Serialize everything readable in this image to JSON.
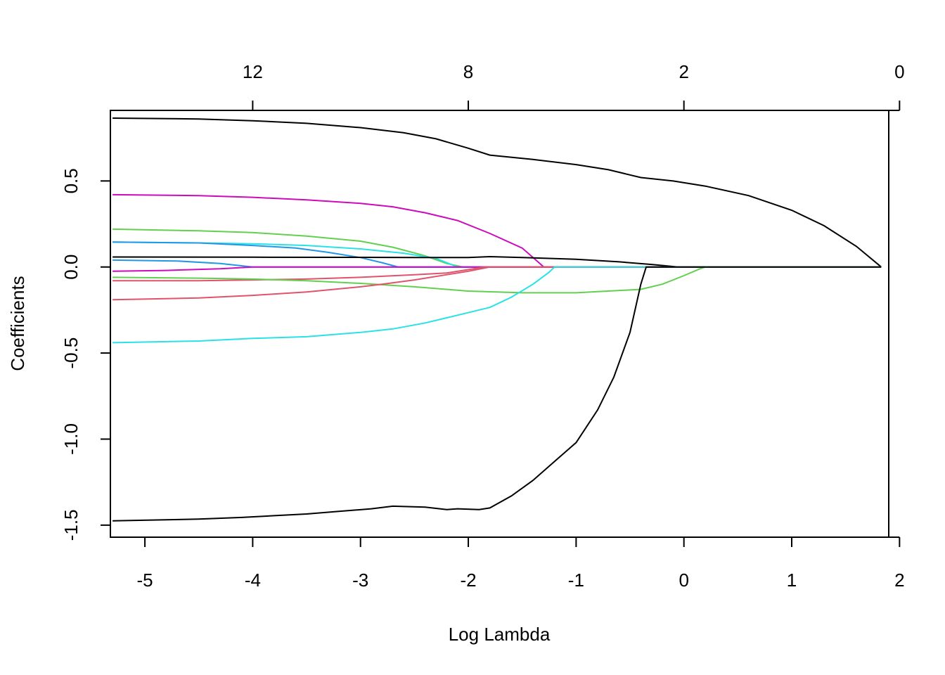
{
  "chart_data": {
    "type": "line",
    "xlabel": "Log Lambda",
    "ylabel": "Coefficients",
    "xlim": [
      -5.32,
      1.9
    ],
    "ylim": [
      -1.57,
      0.91
    ],
    "x_ticks": [
      -5,
      -4,
      -3,
      -2,
      -1,
      0,
      1,
      2
    ],
    "x_tick_labels": [
      "-5",
      "-4",
      "-3",
      "-2",
      "-1",
      "0",
      "1",
      "2"
    ],
    "y_ticks": [
      -1.5,
      -1.0,
      -0.5,
      0.0,
      0.5
    ],
    "y_tick_labels": [
      "-1.5",
      "-1.0",
      "-0.5",
      "0.0",
      "0.5"
    ],
    "top_axis": {
      "ticks": [
        -4,
        -2,
        0,
        2
      ],
      "labels": [
        "12",
        "8",
        "2",
        "0"
      ]
    },
    "grid": false,
    "series": [
      {
        "color": "#000000",
        "points": [
          [
            -5.3,
            0.865
          ],
          [
            -4.5,
            0.86
          ],
          [
            -4,
            0.85
          ],
          [
            -3.5,
            0.835
          ],
          [
            -3,
            0.81
          ],
          [
            -2.6,
            0.78
          ],
          [
            -2.3,
            0.745
          ],
          [
            -2,
            0.69
          ],
          [
            -1.8,
            0.65
          ],
          [
            -1.4,
            0.625
          ],
          [
            -1,
            0.595
          ],
          [
            -0.7,
            0.565
          ],
          [
            -0.4,
            0.52
          ],
          [
            -0.1,
            0.5
          ],
          [
            0.2,
            0.47
          ],
          [
            0.6,
            0.415
          ],
          [
            1,
            0.33
          ],
          [
            1.3,
            0.24
          ],
          [
            1.6,
            0.12
          ],
          [
            1.83,
            0.0
          ]
        ]
      },
      {
        "color": "#CD0BBC",
        "points": [
          [
            -5.3,
            0.42
          ],
          [
            -4.5,
            0.415
          ],
          [
            -4,
            0.405
          ],
          [
            -3.5,
            0.39
          ],
          [
            -3,
            0.37
          ],
          [
            -2.7,
            0.35
          ],
          [
            -2.4,
            0.315
          ],
          [
            -2.1,
            0.27
          ],
          [
            -1.8,
            0.195
          ],
          [
            -1.5,
            0.11
          ],
          [
            -1.3,
            0.0
          ],
          [
            1.83,
            0.0
          ]
        ]
      },
      {
        "color": "#61D04F",
        "points": [
          [
            -5.3,
            0.22
          ],
          [
            -4.5,
            0.21
          ],
          [
            -4,
            0.2
          ],
          [
            -3.5,
            0.18
          ],
          [
            -3,
            0.15
          ],
          [
            -2.7,
            0.115
          ],
          [
            -2.4,
            0.065
          ],
          [
            -2.2,
            0.02
          ],
          [
            -2.05,
            0.0
          ],
          [
            1.83,
            0.0
          ]
        ]
      },
      {
        "color": "#28E2E5",
        "points": [
          [
            -5.3,
            0.145
          ],
          [
            -4.5,
            0.14
          ],
          [
            -4,
            0.135
          ],
          [
            -3.5,
            0.125
          ],
          [
            -3,
            0.105
          ],
          [
            -2.6,
            0.08
          ],
          [
            -2.3,
            0.05
          ],
          [
            -2.1,
            0.0
          ],
          [
            1.83,
            0.0
          ]
        ]
      },
      {
        "color": "#2297E6",
        "points": [
          [
            -5.3,
            0.145
          ],
          [
            -4.5,
            0.14
          ],
          [
            -4,
            0.125
          ],
          [
            -3.6,
            0.11
          ],
          [
            -3.3,
            0.085
          ],
          [
            -3,
            0.055
          ],
          [
            -2.8,
            0.025
          ],
          [
            -2.65,
            0.0
          ],
          [
            1.83,
            0.0
          ]
        ]
      },
      {
        "color": "#000000",
        "points": [
          [
            -5.3,
            0.058
          ],
          [
            -4,
            0.057
          ],
          [
            -3,
            0.056
          ],
          [
            -2.5,
            0.055
          ],
          [
            -2,
            0.055
          ],
          [
            -1.8,
            0.06
          ],
          [
            -1.5,
            0.055
          ],
          [
            -1,
            0.045
          ],
          [
            -0.6,
            0.03
          ],
          [
            -0.3,
            0.015
          ],
          [
            -0.05,
            0.0
          ],
          [
            1.83,
            0.0
          ]
        ]
      },
      {
        "color": "#2297E6",
        "points": [
          [
            -5.3,
            0.04
          ],
          [
            -4.7,
            0.035
          ],
          [
            -4.3,
            0.02
          ],
          [
            -4,
            0.0
          ],
          [
            1.83,
            0.0
          ]
        ]
      },
      {
        "color": "#CD0BBC",
        "points": [
          [
            -5.3,
            -0.025
          ],
          [
            -4.8,
            -0.02
          ],
          [
            -4.3,
            -0.01
          ],
          [
            -4,
            0.0
          ],
          [
            1.83,
            0.0
          ]
        ]
      },
      {
        "color": "#DF536B",
        "points": [
          [
            -5.3,
            -0.08
          ],
          [
            -4.5,
            -0.08
          ],
          [
            -4,
            -0.075
          ],
          [
            -3.5,
            -0.07
          ],
          [
            -3,
            -0.06
          ],
          [
            -2.5,
            -0.045
          ],
          [
            -2.2,
            -0.035
          ],
          [
            -1.95,
            -0.01
          ],
          [
            -1.85,
            0.0
          ],
          [
            1.83,
            0.0
          ]
        ]
      },
      {
        "color": "#61D04F",
        "points": [
          [
            -5.3,
            -0.06
          ],
          [
            -4.5,
            -0.065
          ],
          [
            -4,
            -0.07
          ],
          [
            -3.5,
            -0.08
          ],
          [
            -3,
            -0.095
          ],
          [
            -2.5,
            -0.115
          ],
          [
            -2,
            -0.14
          ],
          [
            -1.5,
            -0.15
          ],
          [
            -1,
            -0.15
          ],
          [
            -0.4,
            -0.13
          ],
          [
            -0.2,
            -0.1
          ],
          [
            0.0,
            -0.05
          ],
          [
            0.15,
            -0.01
          ],
          [
            0.2,
            0.0
          ],
          [
            1.83,
            0.0
          ]
        ]
      },
      {
        "color": "#DF536B",
        "points": [
          [
            -5.3,
            -0.19
          ],
          [
            -4.5,
            -0.18
          ],
          [
            -4,
            -0.165
          ],
          [
            -3.5,
            -0.145
          ],
          [
            -3,
            -0.115
          ],
          [
            -2.8,
            -0.1
          ],
          [
            -2.5,
            -0.075
          ],
          [
            -2.2,
            -0.045
          ],
          [
            -2,
            -0.025
          ],
          [
            -1.8,
            0.0
          ],
          [
            1.83,
            0.0
          ]
        ]
      },
      {
        "color": "#28E2E5",
        "points": [
          [
            -5.3,
            -0.44
          ],
          [
            -4.5,
            -0.43
          ],
          [
            -4,
            -0.415
          ],
          [
            -3.5,
            -0.405
          ],
          [
            -3,
            -0.38
          ],
          [
            -2.7,
            -0.36
          ],
          [
            -2.4,
            -0.325
          ],
          [
            -2.1,
            -0.28
          ],
          [
            -1.8,
            -0.235
          ],
          [
            -1.6,
            -0.175
          ],
          [
            -1.4,
            -0.1
          ],
          [
            -1.25,
            -0.03
          ],
          [
            -1.2,
            0.0
          ],
          [
            1.83,
            0.0
          ]
        ]
      },
      {
        "color": "#000000",
        "points": [
          [
            -5.3,
            -1.475
          ],
          [
            -4.5,
            -1.465
          ],
          [
            -4.1,
            -1.455
          ],
          [
            -3.8,
            -1.445
          ],
          [
            -3.5,
            -1.435
          ],
          [
            -3.2,
            -1.42
          ],
          [
            -2.9,
            -1.405
          ],
          [
            -2.7,
            -1.39
          ],
          [
            -2.4,
            -1.395
          ],
          [
            -2.2,
            -1.41
          ],
          [
            -2.1,
            -1.405
          ],
          [
            -1.9,
            -1.41
          ],
          [
            -1.8,
            -1.4
          ],
          [
            -1.6,
            -1.33
          ],
          [
            -1.4,
            -1.24
          ],
          [
            -1.2,
            -1.13
          ],
          [
            -1.0,
            -1.02
          ],
          [
            -0.8,
            -0.83
          ],
          [
            -0.65,
            -0.64
          ],
          [
            -0.5,
            -0.38
          ],
          [
            -0.4,
            -0.1
          ],
          [
            -0.35,
            0.0
          ],
          [
            1.83,
            0.0
          ]
        ]
      }
    ]
  }
}
